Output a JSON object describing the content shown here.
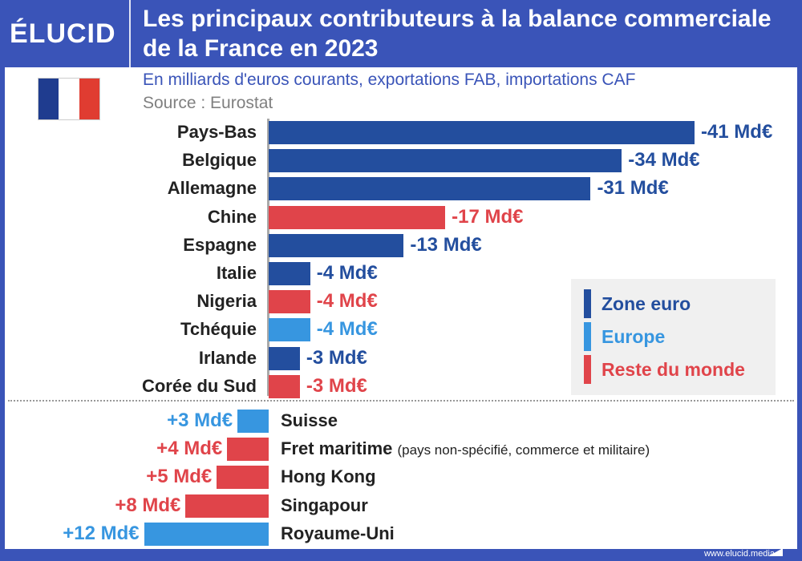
{
  "header": {
    "logo": "ÉLUCID",
    "title": "Les principaux contributeurs à la balance commerciale de la France en 2023",
    "subtitle": "En milliards d'euros courants, exportations FAB, importations CAF",
    "source": "Source : Eurostat",
    "flag_colors": [
      "#1f3c8f",
      "#ffffff",
      "#e03c31"
    ]
  },
  "colors": {
    "Zone euro": "#234e9e",
    "Europe": "#3796e0",
    "Reste du monde": "#e0444a",
    "header_bg": "#3a54b8"
  },
  "legend": {
    "placement": "right",
    "items": [
      {
        "label": "Zone euro",
        "group": "Zone euro"
      },
      {
        "label": "Europe",
        "group": "Europe"
      },
      {
        "label": "Reste du monde",
        "group": "Reste du monde"
      }
    ]
  },
  "chart_data": {
    "type": "bar",
    "orientation": "horizontal",
    "unit": "Md€",
    "xlim": [
      -41,
      12
    ],
    "bars": [
      {
        "category": "Pays-Bas",
        "value": -41,
        "label": "-41 Md€",
        "group": "Zone euro"
      },
      {
        "category": "Belgique",
        "value": -34,
        "label": "-34 Md€",
        "group": "Zone euro"
      },
      {
        "category": "Allemagne",
        "value": -31,
        "label": "-31 Md€",
        "group": "Zone euro"
      },
      {
        "category": "Chine",
        "value": -17,
        "label": "-17 Md€",
        "group": "Reste du monde"
      },
      {
        "category": "Espagne",
        "value": -13,
        "label": "-13 Md€",
        "group": "Zone euro"
      },
      {
        "category": "Italie",
        "value": -4,
        "label": "-4 Md€",
        "group": "Zone euro"
      },
      {
        "category": "Nigeria",
        "value": -4,
        "label": "-4 Md€",
        "group": "Reste du monde"
      },
      {
        "category": "Tchéquie",
        "value": -4,
        "label": "-4 Md€",
        "group": "Europe"
      },
      {
        "category": "Irlande",
        "value": -3,
        "label": "-3 Md€",
        "group": "Zone euro"
      },
      {
        "category": "Corée du Sud",
        "value": -3,
        "label": "-3 Md€",
        "group": "Reste du monde"
      },
      {
        "category": "Suisse",
        "value": 3,
        "label": "+3 Md€",
        "group": "Europe"
      },
      {
        "category": "Fret maritime",
        "note": "(pays non-spécifié, commerce et militaire)",
        "value": 4,
        "label": "+4 Md€",
        "group": "Reste du monde"
      },
      {
        "category": "Hong Kong",
        "value": 5,
        "label": "+5 Md€",
        "group": "Reste du monde"
      },
      {
        "category": "Singapour",
        "value": 8,
        "label": "+8 Md€",
        "group": "Reste du monde"
      },
      {
        "category": "Royaume-Uni",
        "value": 12,
        "label": "+12 Md€",
        "group": "Europe"
      }
    ]
  },
  "footer": {
    "url": "www.elucid.media"
  }
}
